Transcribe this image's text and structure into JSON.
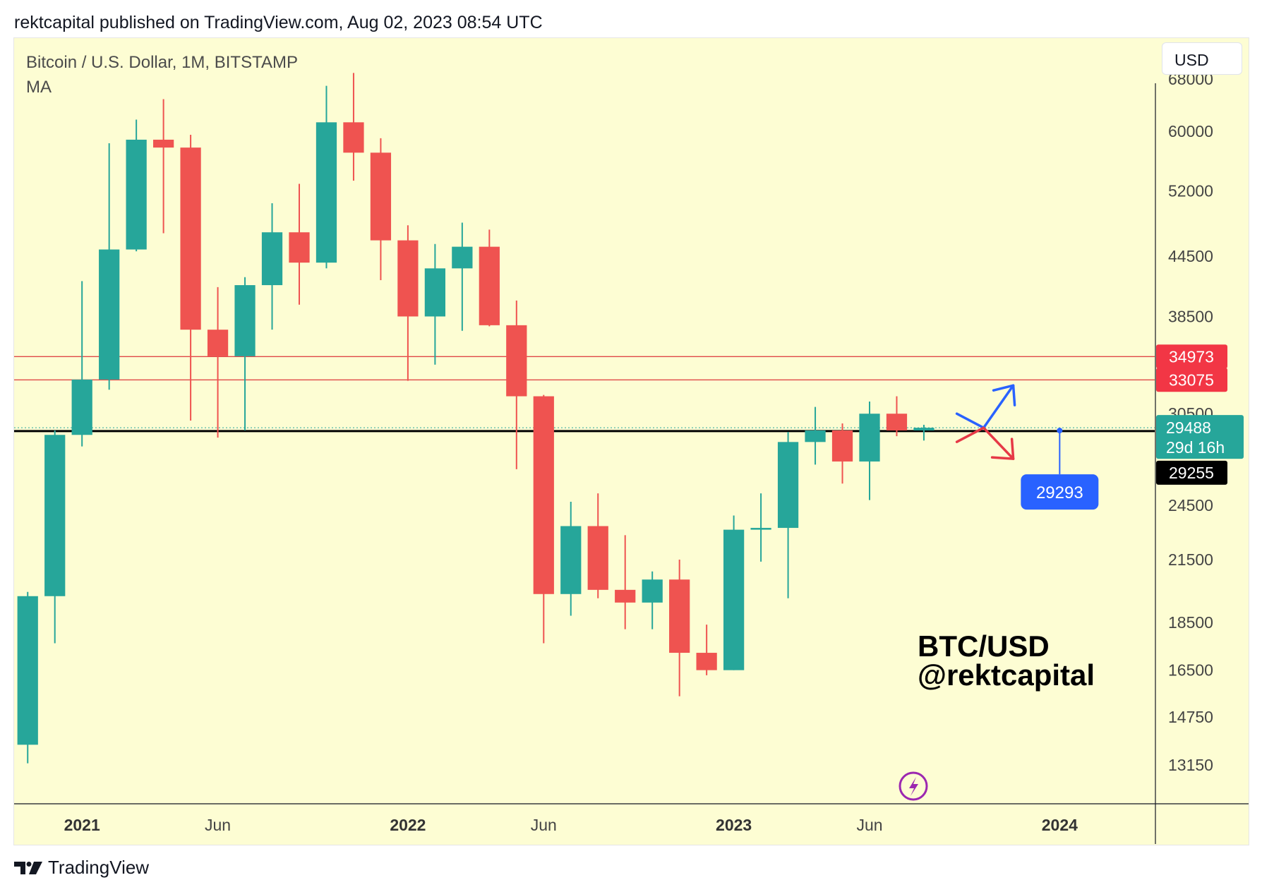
{
  "header": {
    "text": "rektcapital published on TradingView.com, Aug 02, 2023 08:54 UTC"
  },
  "footer": {
    "brand": "TradingView"
  },
  "toolbar": {
    "currency": "USD"
  },
  "colors": {
    "background": "#fdfdd3",
    "up": "#26a69a",
    "down": "#ef5350",
    "resistance": "#e04848",
    "support": "#000000",
    "callout": "#2962ff",
    "bull_arrow": "#2962ff",
    "bear_arrow": "#e63946",
    "watermark": "#9c27b0"
  },
  "chart_data": {
    "type": "candlestick",
    "title": "Bitcoin / U.S. Dollar, 1M, BITSTAMP",
    "subtitle": "MA",
    "annotation": "BTC/USD\n@rektcapital",
    "y_scale": "log",
    "ylim": [
      12000,
      75000
    ],
    "y_ticks": [
      13150,
      14750,
      16500,
      18500,
      21500,
      24500,
      30500,
      38500,
      44500,
      52000,
      60000,
      68000
    ],
    "x_ticks": [
      {
        "label": "2021",
        "month": "2021-01"
      },
      {
        "label": "Jun",
        "month": "2021-06"
      },
      {
        "label": "2022",
        "month": "2022-01"
      },
      {
        "label": "Jun",
        "month": "2022-06"
      },
      {
        "label": "2023",
        "month": "2023-01"
      },
      {
        "label": "Jun",
        "month": "2023-06"
      },
      {
        "label": "2024",
        "month": "2024-01"
      }
    ],
    "x_months": {
      "first": "2020-11",
      "last": "2024-04"
    },
    "candles": [
      {
        "month": "2020-11",
        "open": 13800,
        "high": 19900,
        "low": 13200,
        "close": 19700
      },
      {
        "month": "2020-12",
        "open": 19700,
        "high": 29300,
        "low": 17600,
        "close": 28990
      },
      {
        "month": "2021-01",
        "open": 28990,
        "high": 41900,
        "low": 28200,
        "close": 33100
      },
      {
        "month": "2021-02",
        "open": 33100,
        "high": 58300,
        "low": 32300,
        "close": 45200
      },
      {
        "month": "2021-03",
        "open": 45200,
        "high": 61700,
        "low": 45000,
        "close": 58800
      },
      {
        "month": "2021-04",
        "open": 58800,
        "high": 64800,
        "low": 47000,
        "close": 57700
      },
      {
        "month": "2021-05",
        "open": 57700,
        "high": 59500,
        "low": 30000,
        "close": 37300
      },
      {
        "month": "2021-06",
        "open": 37300,
        "high": 41300,
        "low": 28800,
        "close": 35000
      },
      {
        "month": "2021-07",
        "open": 35000,
        "high": 42300,
        "low": 29300,
        "close": 41500
      },
      {
        "month": "2021-08",
        "open": 41500,
        "high": 50500,
        "low": 37300,
        "close": 47100
      },
      {
        "month": "2021-09",
        "open": 47100,
        "high": 52900,
        "low": 39600,
        "close": 43800
      },
      {
        "month": "2021-10",
        "open": 43800,
        "high": 66900,
        "low": 43200,
        "close": 61300
      },
      {
        "month": "2021-11",
        "open": 61300,
        "high": 69000,
        "low": 53300,
        "close": 57000
      },
      {
        "month": "2021-12",
        "open": 57000,
        "high": 59000,
        "low": 42000,
        "close": 46200
      },
      {
        "month": "2022-01",
        "open": 46200,
        "high": 47900,
        "low": 33000,
        "close": 38500
      },
      {
        "month": "2022-02",
        "open": 38500,
        "high": 45800,
        "low": 34300,
        "close": 43200
      },
      {
        "month": "2022-03",
        "open": 43200,
        "high": 48200,
        "low": 37200,
        "close": 45500
      },
      {
        "month": "2022-04",
        "open": 45500,
        "high": 47400,
        "low": 37600,
        "close": 37700
      },
      {
        "month": "2022-05",
        "open": 37700,
        "high": 40000,
        "low": 26700,
        "close": 31800
      },
      {
        "month": "2022-06",
        "open": 31800,
        "high": 31900,
        "low": 17600,
        "close": 19800
      },
      {
        "month": "2022-07",
        "open": 19800,
        "high": 24700,
        "low": 18800,
        "close": 23300
      },
      {
        "month": "2022-08",
        "open": 23300,
        "high": 25200,
        "low": 19600,
        "close": 20000
      },
      {
        "month": "2022-09",
        "open": 20000,
        "high": 22800,
        "low": 18200,
        "close": 19400
      },
      {
        "month": "2022-10",
        "open": 19400,
        "high": 20900,
        "low": 18200,
        "close": 20500
      },
      {
        "month": "2022-11",
        "open": 20500,
        "high": 21500,
        "low": 15500,
        "close": 17200
      },
      {
        "month": "2022-12",
        "open": 17200,
        "high": 18400,
        "low": 16300,
        "close": 16500
      },
      {
        "month": "2023-01",
        "open": 16500,
        "high": 23900,
        "low": 16500,
        "close": 23100
      },
      {
        "month": "2023-02",
        "open": 23100,
        "high": 25200,
        "low": 21400,
        "close": 23200
      },
      {
        "month": "2023-03",
        "open": 23200,
        "high": 29200,
        "low": 19600,
        "close": 28500
      },
      {
        "month": "2023-04",
        "open": 28500,
        "high": 31000,
        "low": 27000,
        "close": 29300
      },
      {
        "month": "2023-05",
        "open": 29300,
        "high": 29800,
        "low": 25800,
        "close": 27200
      },
      {
        "month": "2023-06",
        "open": 27200,
        "high": 31400,
        "low": 24800,
        "close": 30500
      },
      {
        "month": "2023-07",
        "open": 30500,
        "high": 31800,
        "low": 28900,
        "close": 29300
      },
      {
        "month": "2023-08",
        "open": 29300,
        "high": 29700,
        "low": 28600,
        "close": 29488
      }
    ],
    "horizontal_lines": [
      {
        "price": 34973,
        "label": "34973",
        "color": "#e04848"
      },
      {
        "price": 33075,
        "label": "33075",
        "color": "#e04848"
      },
      {
        "price": 29255,
        "label": "29255",
        "color": "#000000"
      }
    ],
    "current_price": {
      "price": 29488,
      "label": "29488",
      "countdown": "29d 16h"
    },
    "callout": {
      "month": "2024-01",
      "price": 29293,
      "label": "29293"
    }
  }
}
